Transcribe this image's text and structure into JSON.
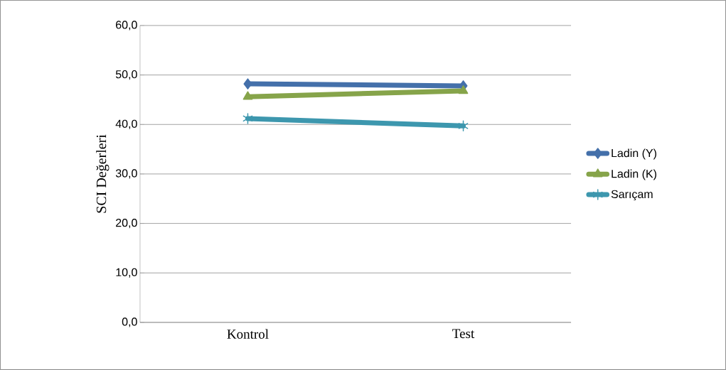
{
  "chart_data": {
    "type": "line",
    "ylabel": "SCI Değerleri",
    "categories": [
      "Kontrol",
      "Test"
    ],
    "series": [
      {
        "name": "Ladin (Y)",
        "color": "#4470aa",
        "marker": "diamond",
        "values": [
          48.2,
          47.8
        ]
      },
      {
        "name": "Ladin (K)",
        "color": "#86a44a",
        "marker": "triangle",
        "values": [
          45.6,
          46.8
        ]
      },
      {
        "name": "Sarıçam",
        "color": "#3d97ae",
        "marker": "cross",
        "values": [
          41.2,
          39.7
        ]
      }
    ],
    "ylim": [
      0,
      60
    ],
    "yticks": [
      {
        "value": 0,
        "label": "0,0"
      },
      {
        "value": 10,
        "label": "10,0"
      },
      {
        "value": 20,
        "label": "20,0"
      },
      {
        "value": 30,
        "label": "30,0"
      },
      {
        "value": 40,
        "label": "40,0"
      },
      {
        "value": 50,
        "label": "50,0"
      },
      {
        "value": 60,
        "label": "60,0"
      }
    ],
    "grid": "y",
    "legend": "right",
    "line_style": "solid"
  }
}
